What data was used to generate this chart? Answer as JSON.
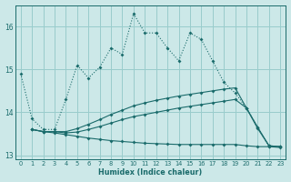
{
  "xlabel": "Humidex (Indice chaleur)",
  "bg_color": "#cce8e8",
  "grid_color": "#99cccc",
  "line_color": "#1a6b6b",
  "xlim": [
    -0.5,
    23.5
  ],
  "ylim": [
    12.9,
    16.5
  ],
  "yticks": [
    13,
    14,
    15,
    16
  ],
  "xticks": [
    0,
    1,
    2,
    3,
    4,
    5,
    6,
    7,
    8,
    9,
    10,
    11,
    12,
    13,
    14,
    15,
    16,
    17,
    18,
    19,
    20,
    21,
    22,
    23
  ],
  "series1_x": [
    0,
    1,
    2,
    3,
    4,
    5,
    6,
    7,
    8,
    9,
    10,
    11,
    12,
    13,
    14,
    15,
    16,
    17,
    18,
    19,
    20,
    21,
    22,
    23
  ],
  "series1_y": [
    14.9,
    13.85,
    13.6,
    13.6,
    14.3,
    15.1,
    14.8,
    15.05,
    15.5,
    15.35,
    16.3,
    15.85,
    15.85,
    15.5,
    15.2,
    15.85,
    15.7,
    15.2,
    14.7,
    14.45,
    14.1,
    13.65,
    13.2,
    13.2
  ],
  "series2_x": [
    1,
    2,
    3,
    4,
    5,
    6,
    7,
    8,
    9,
    10,
    11,
    12,
    13,
    14,
    15,
    16,
    17,
    18,
    19,
    20,
    21,
    22,
    23
  ],
  "series2_y": [
    13.6,
    13.55,
    13.55,
    13.55,
    13.62,
    13.72,
    13.83,
    13.95,
    14.05,
    14.15,
    14.22,
    14.28,
    14.33,
    14.38,
    14.42,
    14.46,
    14.5,
    14.54,
    14.57,
    14.1,
    13.65,
    13.22,
    13.2
  ],
  "series3_x": [
    1,
    2,
    3,
    4,
    5,
    6,
    7,
    8,
    9,
    10,
    11,
    12,
    13,
    14,
    15,
    16,
    17,
    18,
    19,
    20,
    21,
    22,
    23
  ],
  "series3_y": [
    13.6,
    13.55,
    13.55,
    13.52,
    13.54,
    13.6,
    13.67,
    13.75,
    13.83,
    13.9,
    13.95,
    14.0,
    14.05,
    14.1,
    14.14,
    14.18,
    14.22,
    14.26,
    14.3,
    14.1,
    13.62,
    13.22,
    13.2
  ],
  "series4_x": [
    1,
    2,
    3,
    4,
    5,
    6,
    7,
    8,
    9,
    10,
    11,
    12,
    13,
    14,
    15,
    16,
    17,
    18,
    19,
    20,
    21,
    22,
    23
  ],
  "series4_y": [
    13.6,
    13.55,
    13.52,
    13.48,
    13.44,
    13.4,
    13.37,
    13.34,
    13.32,
    13.3,
    13.28,
    13.27,
    13.26,
    13.25,
    13.25,
    13.25,
    13.25,
    13.25,
    13.25,
    13.22,
    13.2,
    13.2,
    13.18
  ]
}
